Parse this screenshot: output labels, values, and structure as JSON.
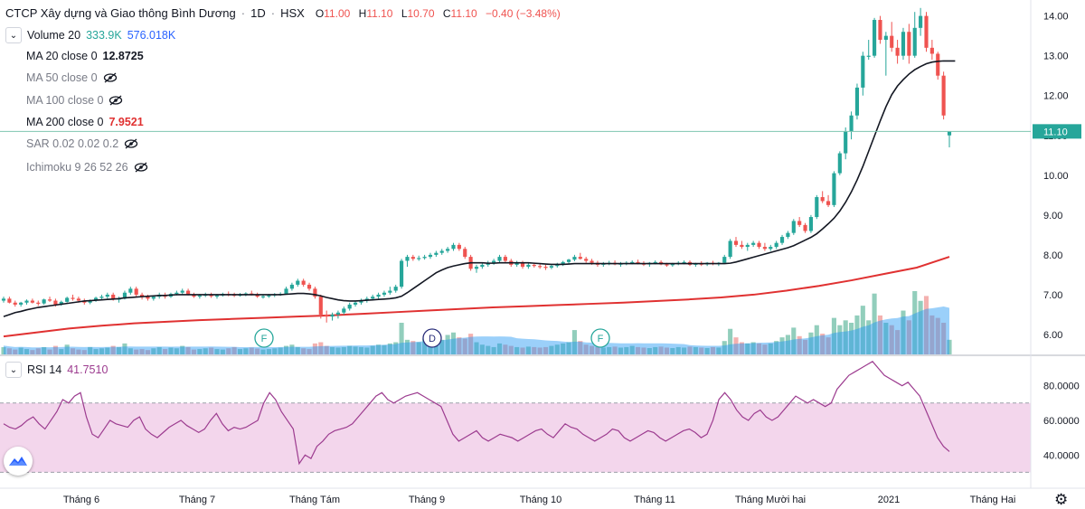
{
  "header": {
    "company": "CTCP Xây dựng và Giao thông Bình Dương",
    "interval": "1D",
    "exchange": "HSX",
    "open_label": "O",
    "open": "11.00",
    "high_label": "H",
    "high": "11.10",
    "low_label": "L",
    "low": "10.70",
    "close_label": "C",
    "close": "11.10",
    "change": "−0.40 (−3.48%)"
  },
  "indicators": {
    "volume": {
      "label": "Volume 20",
      "v1": "333.9K",
      "v2": "576.018K"
    },
    "ma20": {
      "label": "MA 20 close 0",
      "value": "12.8725"
    },
    "ma50": {
      "label": "MA 50 close 0"
    },
    "ma100": {
      "label": "MA 100 close 0"
    },
    "ma200": {
      "label": "MA 200 close 0",
      "value": "7.9521"
    },
    "sar": {
      "label": "SAR 0.02 0.02 0.2"
    },
    "ichimoku": {
      "label": "Ichimoku 9 26 52 26"
    },
    "rsi": {
      "label": "RSI 14",
      "value": "41.7510"
    }
  },
  "last_price_tag": "11.10",
  "colors": {
    "up": "#26a69a",
    "down": "#ef5350",
    "ma20": "#131722",
    "ma200": "#e03131",
    "rsi": "#9c3b8f",
    "rsi_band": "#f3d6ec",
    "price_line": "#7fc6b0"
  },
  "chart_data": {
    "type": "candlestick",
    "price_axis": {
      "ylim": [
        5.5,
        14.4
      ],
      "ticks": [
        "6.00",
        "7.00",
        "8.00",
        "9.00",
        "10.00",
        "11.00",
        "12.00",
        "13.00",
        "14.00"
      ]
    },
    "x_tick_labels": [
      "Tháng 6",
      "Tháng 7",
      "Tháng Tám",
      "Tháng 9",
      "Tháng 10",
      "Tháng 11",
      "Tháng Mười hai",
      "2021",
      "Tháng Hai"
    ],
    "events": [
      "F",
      "D",
      "F"
    ],
    "ohlc": [
      [
        6.85,
        6.95,
        6.8,
        6.9
      ],
      [
        6.9,
        6.95,
        6.78,
        6.8
      ],
      [
        6.8,
        6.85,
        6.7,
        6.75
      ],
      [
        6.75,
        6.82,
        6.7,
        6.8
      ],
      [
        6.8,
        6.88,
        6.75,
        6.85
      ],
      [
        6.85,
        6.9,
        6.78,
        6.8
      ],
      [
        6.8,
        6.85,
        6.72,
        6.78
      ],
      [
        6.78,
        6.9,
        6.75,
        6.88
      ],
      [
        6.88,
        6.95,
        6.82,
        6.85
      ],
      [
        6.85,
        6.9,
        6.7,
        6.75
      ],
      [
        6.75,
        6.85,
        6.72,
        6.82
      ],
      [
        6.82,
        6.95,
        6.8,
        6.92
      ],
      [
        6.92,
        7.0,
        6.85,
        6.9
      ],
      [
        6.9,
        6.95,
        6.8,
        6.85
      ],
      [
        6.85,
        6.9,
        6.75,
        6.8
      ],
      [
        6.8,
        6.88,
        6.76,
        6.86
      ],
      [
        6.86,
        6.95,
        6.82,
        6.92
      ],
      [
        6.92,
        7.0,
        6.88,
        6.95
      ],
      [
        6.95,
        7.05,
        6.9,
        7.0
      ],
      [
        7.0,
        7.05,
        6.85,
        6.88
      ],
      [
        6.88,
        6.95,
        6.8,
        6.9
      ],
      [
        6.9,
        7.1,
        6.88,
        7.05
      ],
      [
        7.05,
        7.2,
        7.0,
        7.15
      ],
      [
        7.15,
        7.2,
        6.95,
        7.0
      ],
      [
        7.0,
        7.05,
        6.88,
        6.95
      ],
      [
        6.95,
        7.0,
        6.85,
        6.9
      ],
      [
        6.9,
        6.98,
        6.85,
        6.95
      ],
      [
        6.95,
        7.05,
        6.9,
        7.0
      ],
      [
        7.0,
        7.05,
        6.9,
        6.95
      ],
      [
        6.95,
        7.05,
        6.92,
        7.02
      ],
      [
        7.02,
        7.1,
        6.98,
        7.05
      ],
      [
        7.05,
        7.15,
        7.0,
        7.1
      ],
      [
        7.1,
        7.15,
        6.98,
        7.0
      ],
      [
        7.0,
        7.05,
        6.92,
        6.95
      ],
      [
        6.95,
        7.02,
        6.9,
        6.98
      ],
      [
        6.98,
        7.05,
        6.94,
        7.0
      ],
      [
        7.0,
        7.05,
        6.92,
        6.96
      ],
      [
        6.96,
        7.02,
        6.9,
        6.98
      ],
      [
        6.98,
        7.05,
        6.95,
        7.02
      ],
      [
        7.02,
        7.08,
        6.96,
        7.0
      ],
      [
        7.0,
        7.05,
        6.94,
        6.98
      ],
      [
        6.98,
        7.04,
        6.95,
        7.0
      ],
      [
        7.0,
        7.06,
        6.96,
        7.03
      ],
      [
        7.03,
        7.1,
        6.98,
        7.0
      ],
      [
        7.0,
        7.05,
        6.92,
        6.95
      ],
      [
        6.95,
        7.0,
        6.9,
        6.96
      ],
      [
        6.96,
        7.02,
        6.92,
        6.98
      ],
      [
        6.98,
        7.04,
        6.94,
        7.01
      ],
      [
        7.01,
        7.06,
        6.97,
        7.02
      ],
      [
        7.02,
        7.2,
        7.0,
        7.15
      ],
      [
        7.15,
        7.3,
        7.1,
        7.25
      ],
      [
        7.25,
        7.4,
        7.2,
        7.35
      ],
      [
        7.35,
        7.4,
        7.2,
        7.25
      ],
      [
        7.25,
        7.3,
        7.1,
        7.15
      ],
      [
        7.15,
        7.2,
        6.9,
        6.95
      ],
      [
        6.95,
        7.0,
        6.4,
        6.5
      ],
      [
        6.5,
        6.6,
        6.3,
        6.45
      ],
      [
        6.45,
        6.55,
        6.35,
        6.5
      ],
      [
        6.5,
        6.6,
        6.4,
        6.55
      ],
      [
        6.55,
        6.7,
        6.5,
        6.65
      ],
      [
        6.65,
        6.8,
        6.6,
        6.75
      ],
      [
        6.75,
        6.85,
        6.7,
        6.8
      ],
      [
        6.8,
        6.9,
        6.75,
        6.85
      ],
      [
        6.85,
        6.95,
        6.8,
        6.9
      ],
      [
        6.9,
        7.0,
        6.85,
        6.95
      ],
      [
        6.95,
        7.05,
        6.9,
        7.0
      ],
      [
        7.0,
        7.1,
        6.95,
        7.05
      ],
      [
        7.05,
        7.2,
        7.0,
        7.1
      ],
      [
        7.1,
        7.25,
        7.05,
        7.2
      ],
      [
        7.2,
        7.9,
        7.15,
        7.85
      ],
      [
        7.85,
        8.0,
        7.7,
        7.95
      ],
      [
        7.95,
        8.0,
        7.85,
        7.9
      ],
      [
        7.9,
        7.98,
        7.85,
        7.92
      ],
      [
        7.92,
        8.0,
        7.88,
        7.95
      ],
      [
        7.95,
        8.05,
        7.9,
        8.0
      ],
      [
        8.0,
        8.1,
        7.95,
        8.05
      ],
      [
        8.05,
        8.15,
        8.0,
        8.1
      ],
      [
        8.1,
        8.2,
        8.05,
        8.15
      ],
      [
        8.15,
        8.3,
        8.1,
        8.25
      ],
      [
        8.25,
        8.3,
        8.1,
        8.15
      ],
      [
        8.15,
        8.2,
        7.9,
        7.95
      ],
      [
        7.95,
        8.0,
        7.6,
        7.65
      ],
      [
        7.65,
        7.75,
        7.55,
        7.7
      ],
      [
        7.7,
        7.8,
        7.65,
        7.75
      ],
      [
        7.75,
        7.85,
        7.7,
        7.8
      ],
      [
        7.8,
        7.9,
        7.75,
        7.85
      ],
      [
        7.85,
        8.0,
        7.8,
        7.95
      ],
      [
        7.95,
        8.0,
        7.8,
        7.85
      ],
      [
        7.85,
        7.9,
        7.7,
        7.75
      ],
      [
        7.75,
        7.85,
        7.7,
        7.8
      ],
      [
        7.8,
        7.85,
        7.65,
        7.7
      ],
      [
        7.7,
        7.8,
        7.65,
        7.75
      ],
      [
        7.75,
        7.8,
        7.68,
        7.72
      ],
      [
        7.72,
        7.78,
        7.65,
        7.7
      ],
      [
        7.7,
        7.75,
        7.62,
        7.68
      ],
      [
        7.68,
        7.75,
        7.64,
        7.72
      ],
      [
        7.72,
        7.8,
        7.68,
        7.76
      ],
      [
        7.76,
        7.85,
        7.72,
        7.82
      ],
      [
        7.82,
        7.9,
        7.78,
        7.88
      ],
      [
        7.88,
        8.0,
        7.84,
        7.95
      ],
      [
        7.95,
        8.05,
        7.88,
        7.9
      ],
      [
        7.9,
        7.95,
        7.8,
        7.85
      ],
      [
        7.85,
        7.9,
        7.75,
        7.8
      ],
      [
        7.8,
        7.85,
        7.7,
        7.75
      ],
      [
        7.75,
        7.82,
        7.7,
        7.78
      ],
      [
        7.78,
        7.85,
        7.74,
        7.8
      ],
      [
        7.8,
        7.86,
        7.74,
        7.76
      ],
      [
        7.76,
        7.82,
        7.7,
        7.78
      ],
      [
        7.78,
        7.84,
        7.74,
        7.8
      ],
      [
        7.8,
        7.86,
        7.76,
        7.82
      ],
      [
        7.82,
        7.88,
        7.76,
        7.78
      ],
      [
        7.78,
        7.84,
        7.72,
        7.76
      ],
      [
        7.76,
        7.82,
        7.7,
        7.8
      ],
      [
        7.8,
        7.86,
        7.76,
        7.82
      ],
      [
        7.82,
        7.86,
        7.74,
        7.76
      ],
      [
        7.76,
        7.8,
        7.7,
        7.74
      ],
      [
        7.74,
        7.8,
        7.7,
        7.78
      ],
      [
        7.78,
        7.84,
        7.74,
        7.8
      ],
      [
        7.8,
        7.86,
        7.76,
        7.82
      ],
      [
        7.82,
        7.86,
        7.72,
        7.75
      ],
      [
        7.75,
        7.8,
        7.7,
        7.78
      ],
      [
        7.78,
        7.84,
        7.72,
        7.76
      ],
      [
        7.76,
        7.82,
        7.72,
        7.8
      ],
      [
        7.8,
        7.85,
        7.74,
        7.77
      ],
      [
        7.77,
        7.82,
        7.72,
        7.8
      ],
      [
        7.8,
        8.0,
        7.78,
        7.95
      ],
      [
        7.95,
        8.4,
        7.9,
        8.35
      ],
      [
        8.35,
        8.45,
        8.2,
        8.25
      ],
      [
        8.25,
        8.35,
        8.15,
        8.2
      ],
      [
        8.2,
        8.3,
        8.1,
        8.25
      ],
      [
        8.25,
        8.35,
        8.2,
        8.3
      ],
      [
        8.3,
        8.35,
        8.15,
        8.2
      ],
      [
        8.2,
        8.3,
        8.1,
        8.15
      ],
      [
        8.15,
        8.25,
        8.1,
        8.2
      ],
      [
        8.2,
        8.35,
        8.15,
        8.3
      ],
      [
        8.3,
        8.5,
        8.25,
        8.45
      ],
      [
        8.45,
        8.6,
        8.4,
        8.55
      ],
      [
        8.55,
        8.9,
        8.5,
        8.85
      ],
      [
        8.85,
        8.95,
        8.7,
        8.75
      ],
      [
        8.75,
        8.8,
        8.55,
        8.6
      ],
      [
        8.6,
        9.0,
        8.55,
        8.95
      ],
      [
        8.95,
        9.5,
        8.9,
        9.45
      ],
      [
        9.45,
        9.6,
        9.3,
        9.35
      ],
      [
        9.35,
        9.5,
        9.2,
        9.25
      ],
      [
        9.25,
        10.1,
        9.2,
        10.05
      ],
      [
        10.05,
        10.6,
        10.0,
        10.55
      ],
      [
        10.55,
        11.2,
        10.4,
        11.1
      ],
      [
        11.1,
        11.6,
        10.9,
        11.5
      ],
      [
        11.5,
        12.3,
        11.4,
        12.2
      ],
      [
        12.2,
        13.1,
        12.0,
        13.0
      ],
      [
        13.0,
        13.4,
        12.9,
        13.0
      ],
      [
        13.0,
        13.95,
        12.95,
        13.9
      ],
      [
        13.9,
        14.0,
        13.3,
        13.4
      ],
      [
        13.4,
        13.6,
        12.5,
        13.5
      ],
      [
        13.5,
        13.85,
        13.1,
        13.2
      ],
      [
        13.2,
        13.4,
        12.8,
        13.0
      ],
      [
        13.0,
        13.7,
        12.9,
        13.6
      ],
      [
        13.6,
        13.8,
        12.8,
        13.0
      ],
      [
        13.0,
        14.1,
        12.95,
        13.7
      ],
      [
        13.7,
        14.2,
        13.5,
        14.0
      ],
      [
        14.0,
        14.1,
        13.1,
        13.2
      ],
      [
        13.2,
        13.4,
        12.9,
        13.05
      ],
      [
        13.05,
        13.1,
        12.4,
        12.5
      ],
      [
        12.5,
        12.6,
        11.4,
        11.5
      ],
      [
        11.0,
        11.1,
        10.7,
        11.1
      ]
    ],
    "ma20_values": [
      6.45,
      6.5,
      6.55,
      6.58,
      6.62,
      6.65,
      6.68,
      6.7,
      6.72,
      6.74,
      6.76,
      6.78,
      6.8,
      6.82,
      6.84,
      6.85,
      6.86,
      6.87,
      6.88,
      6.89,
      6.9,
      6.92,
      6.93,
      6.94,
      6.95,
      6.96,
      6.97,
      6.98,
      6.98,
      6.99,
      7.0,
      7.0,
      7.0,
      7.0,
      7.0,
      7.0,
      7.0,
      7.0,
      7.0,
      7.0,
      7.0,
      7.0,
      7.0,
      7.0,
      7.0,
      7.0,
      7.0,
      7.0,
      7.0,
      7.01,
      7.02,
      7.03,
      7.03,
      7.02,
      7.0,
      6.97,
      6.93,
      6.9,
      6.87,
      6.85,
      6.84,
      6.84,
      6.85,
      6.86,
      6.87,
      6.88,
      6.89,
      6.9,
      6.92,
      6.96,
      7.05,
      7.15,
      7.25,
      7.35,
      7.45,
      7.55,
      7.62,
      7.68,
      7.72,
      7.75,
      7.78,
      7.8,
      7.8,
      7.8,
      7.79,
      7.79,
      7.8,
      7.8,
      7.8,
      7.8,
      7.8,
      7.8,
      7.79,
      7.78,
      7.77,
      7.76,
      7.76,
      7.76,
      7.77,
      7.78,
      7.78,
      7.78,
      7.78,
      7.78,
      7.78,
      7.78,
      7.78,
      7.78,
      7.78,
      7.78,
      7.78,
      7.78,
      7.78,
      7.78,
      7.78,
      7.78,
      7.78,
      7.78,
      7.78,
      7.78,
      7.78,
      7.78,
      7.78,
      7.78,
      7.78,
      7.78,
      7.79,
      7.82,
      7.86,
      7.9,
      7.94,
      7.98,
      8.02,
      8.06,
      8.1,
      8.14,
      8.18,
      8.23,
      8.3,
      8.37,
      8.44,
      8.53,
      8.65,
      8.78,
      8.92,
      9.1,
      9.32,
      9.58,
      9.88,
      10.22,
      10.6,
      10.98,
      11.36,
      11.72,
      12.02,
      12.24,
      12.4,
      12.54,
      12.65,
      12.73,
      12.8,
      12.84,
      12.86,
      12.87,
      12.87,
      12.87
    ],
    "ma200_values": [
      5.95,
      6.05,
      6.15,
      6.22,
      6.28,
      6.32,
      6.36,
      6.39,
      6.42,
      6.45,
      6.48,
      6.52,
      6.56,
      6.6,
      6.64,
      6.68,
      6.71,
      6.74,
      6.77,
      6.8,
      6.84,
      6.88,
      6.93,
      7.0,
      7.1,
      7.22,
      7.36,
      7.52,
      7.68,
      7.95
    ],
    "volume": [
      0.3,
      0.25,
      0.2,
      0.28,
      0.22,
      0.18,
      0.25,
      0.3,
      0.2,
      0.35,
      0.22,
      0.4,
      0.25,
      0.2,
      0.18,
      0.3,
      0.22,
      0.25,
      0.28,
      0.35,
      0.3,
      0.45,
      0.25,
      0.2,
      0.22,
      0.18,
      0.25,
      0.3,
      0.22,
      0.28,
      0.25,
      0.35,
      0.3,
      0.2,
      0.22,
      0.25,
      0.28,
      0.22,
      0.2,
      0.25,
      0.3,
      0.22,
      0.25,
      0.28,
      0.24,
      0.2,
      0.22,
      0.25,
      0.28,
      0.35,
      0.4,
      0.3,
      0.25,
      0.22,
      0.45,
      0.5,
      0.35,
      0.3,
      0.28,
      0.3,
      0.35,
      0.32,
      0.3,
      0.28,
      0.35,
      0.4,
      0.38,
      0.45,
      0.5,
      1.3,
      0.6,
      0.55,
      0.5,
      0.65,
      0.7,
      0.55,
      0.6,
      0.8,
      0.9,
      0.7,
      0.65,
      0.85,
      0.5,
      0.4,
      0.35,
      0.3,
      0.45,
      0.4,
      0.35,
      0.3,
      0.28,
      0.32,
      0.3,
      0.28,
      0.3,
      0.35,
      0.4,
      0.45,
      0.5,
      1.0,
      0.55,
      0.4,
      0.35,
      0.3,
      0.28,
      0.3,
      0.32,
      0.28,
      0.3,
      0.35,
      0.3,
      0.28,
      0.26,
      0.3,
      0.32,
      0.28,
      0.26,
      0.3,
      0.28,
      0.32,
      0.3,
      0.28,
      0.26,
      0.3,
      0.28,
      0.55,
      1.05,
      0.7,
      0.5,
      0.45,
      0.5,
      0.45,
      0.4,
      0.45,
      0.55,
      0.7,
      0.8,
      1.1,
      0.75,
      0.6,
      0.9,
      1.2,
      0.85,
      0.7,
      1.5,
      1.2,
      1.4,
      1.3,
      1.6,
      2.0,
      1.4,
      2.5,
      1.6,
      1.3,
      1.2,
      1.0,
      1.8,
      1.4,
      2.6,
      2.2,
      2.4,
      1.6,
      1.5,
      1.3,
      0.6
    ],
    "rsi": {
      "ylim": [
        25,
        96
      ],
      "ticks": [
        "40.0000",
        "60.0000",
        "80.0000"
      ],
      "bands": [
        30,
        70
      ],
      "values": [
        58,
        56,
        55,
        57,
        60,
        62,
        58,
        55,
        60,
        65,
        72,
        70,
        74,
        76,
        62,
        52,
        50,
        55,
        60,
        58,
        57,
        56,
        60,
        62,
        55,
        52,
        50,
        53,
        56,
        58,
        60,
        57,
        55,
        53,
        55,
        60,
        64,
        58,
        54,
        56,
        55,
        56,
        58,
        60,
        70,
        76,
        72,
        65,
        60,
        55,
        35,
        40,
        38,
        45,
        48,
        52,
        54,
        55,
        56,
        58,
        62,
        66,
        70,
        74,
        76,
        72,
        70,
        72,
        74,
        75,
        76,
        74,
        72,
        70,
        68,
        60,
        52,
        48,
        50,
        52,
        54,
        50,
        48,
        50,
        52,
        51,
        50,
        48,
        50,
        52,
        54,
        55,
        52,
        50,
        54,
        58,
        56,
        55,
        52,
        50,
        48,
        50,
        52,
        55,
        54,
        50,
        48,
        50,
        52,
        54,
        53,
        50,
        48,
        50,
        52,
        54,
        55,
        53,
        50,
        52,
        60,
        72,
        76,
        72,
        66,
        62,
        60,
        64,
        66,
        62,
        60,
        62,
        66,
        70,
        74,
        72,
        70,
        72,
        70,
        68,
        70,
        78,
        82,
        86,
        88,
        90,
        92,
        94,
        90,
        86,
        84,
        82,
        80,
        82,
        78,
        74,
        66,
        58,
        50,
        45,
        42
      ]
    }
  }
}
